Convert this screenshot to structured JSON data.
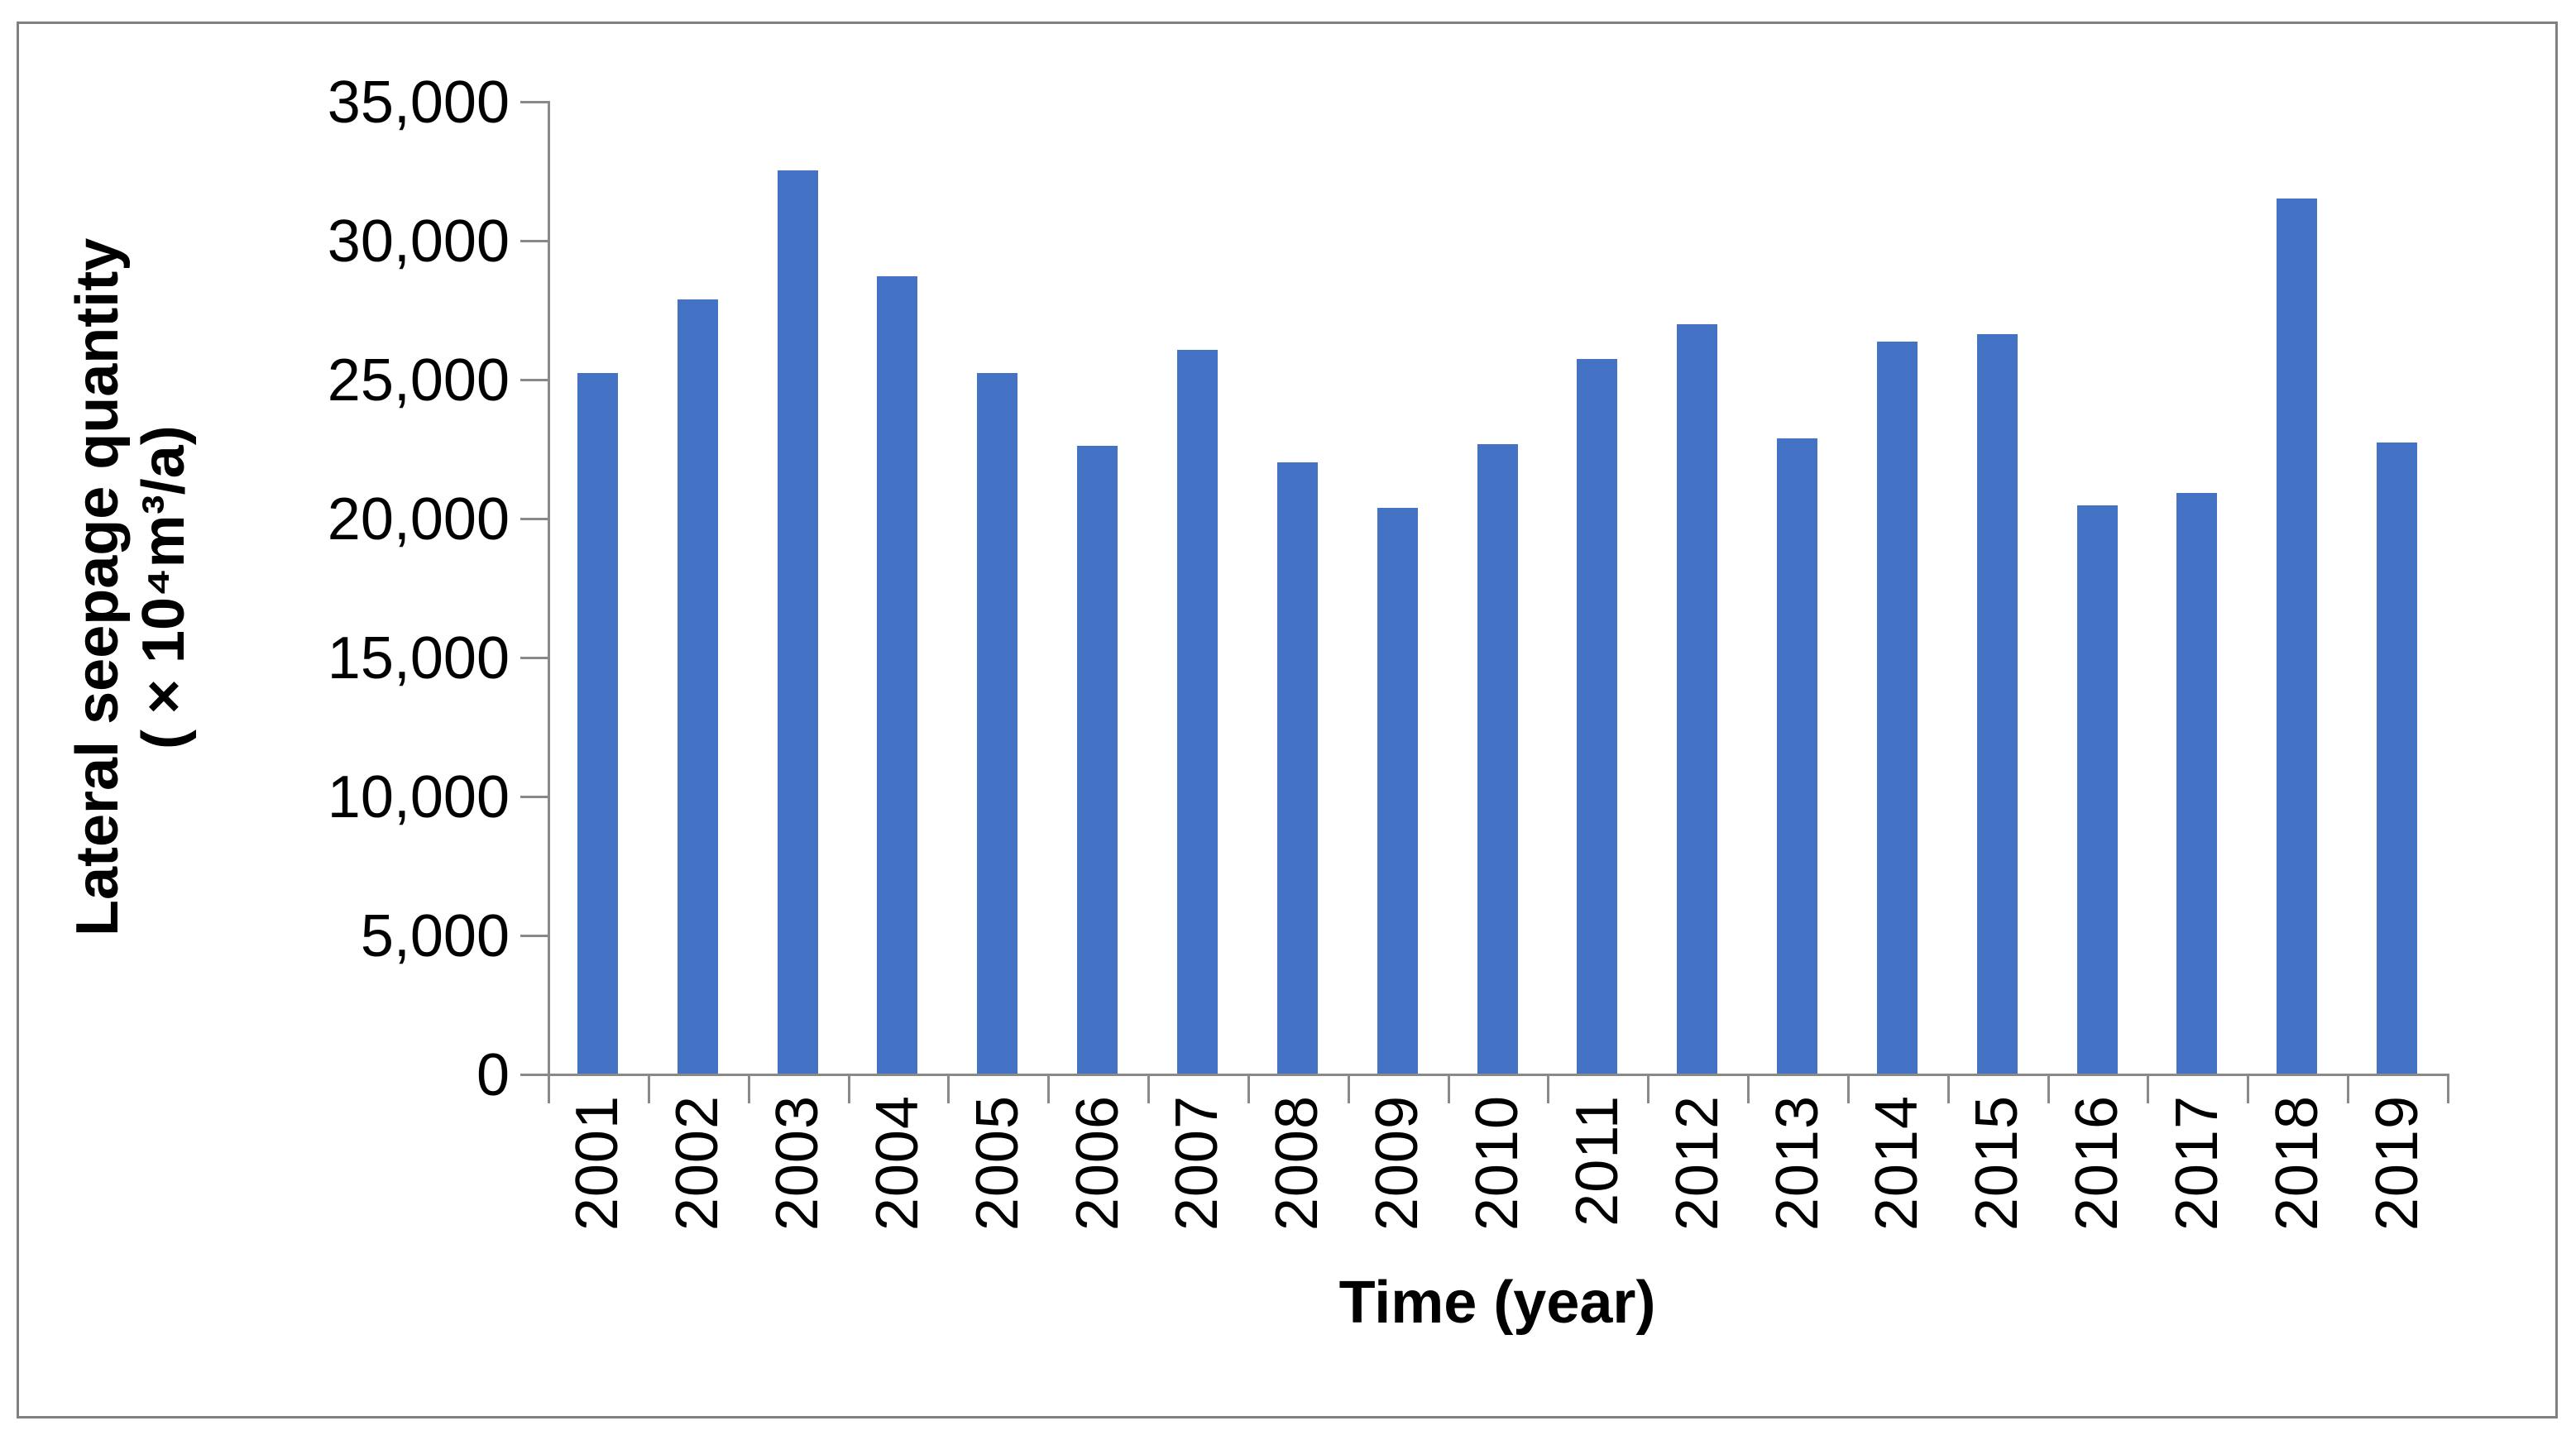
{
  "figure": {
    "background_color": "#ffffff",
    "frame_border_color": "#808080"
  },
  "chart_data": {
    "type": "bar",
    "title": "",
    "xlabel": "Time (year)",
    "ylabel": "Lateral seepage quantity (×10⁴m³/a)",
    "categories": [
      "2001",
      "2002",
      "2003",
      "2004",
      "2005",
      "2006",
      "2007",
      "2008",
      "2009",
      "2010",
      "2011",
      "2012",
      "2013",
      "2014",
      "2015",
      "2016",
      "2017",
      "2018",
      "2019"
    ],
    "values": [
      25200,
      27850,
      32500,
      28700,
      25200,
      22600,
      26050,
      22000,
      20350,
      22650,
      25700,
      26950,
      22850,
      26350,
      26600,
      20450,
      20900,
      31500,
      22700
    ],
    "series_name": "Lateral seepage quantity",
    "ylim": [
      0,
      35000
    ],
    "ytick_interval": 5000,
    "ytick_labels": [
      "0",
      "5,000",
      "10,000",
      "15,000",
      "20,000",
      "25,000",
      "30,000",
      "35,000"
    ],
    "xtick_rotation_degrees": 90,
    "grid": false,
    "legend": false,
    "bar_color": "#4472C4",
    "axis_color": "#898989",
    "text_color": "#000000"
  }
}
